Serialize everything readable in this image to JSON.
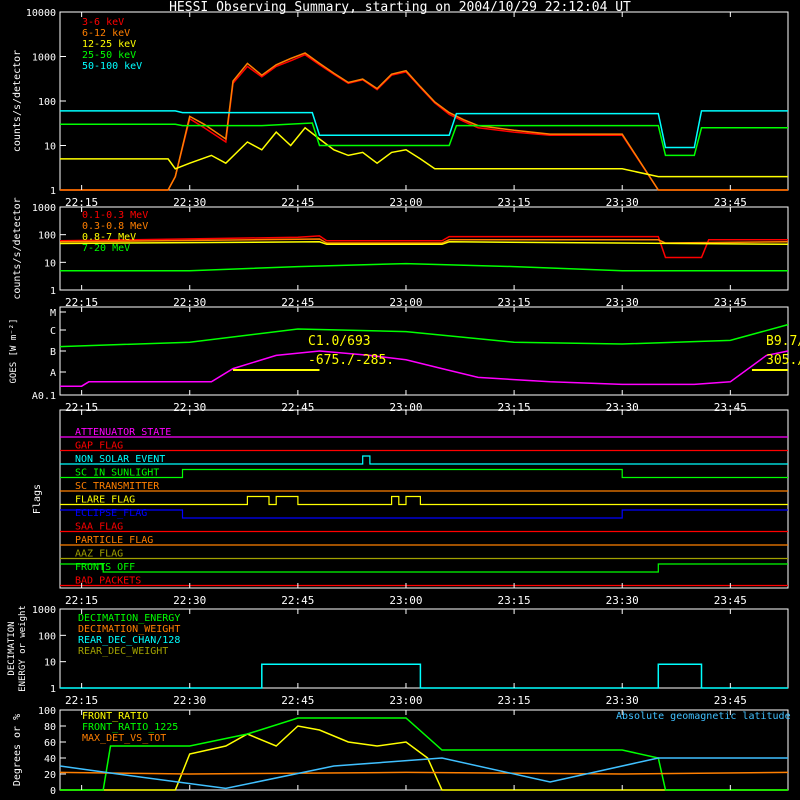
{
  "title": "HESSI Observing Summary, starting on 2004/10/29 22:12:04 UT",
  "time_labels": [
    "22:15",
    "22:30",
    "22:45",
    "23:00",
    "23:15",
    "23:30",
    "23:45"
  ],
  "colors": {
    "red": "#ff0000",
    "orange": "#ff7f00",
    "yellow": "#ffff00",
    "green": "#00ff00",
    "cyan": "#00ffff",
    "magenta": "#ff00ff",
    "blue": "#0000ff",
    "white": "#ffffff",
    "olive": "#a0a000"
  },
  "chart_data": [
    {
      "type": "line",
      "ylabel": "counts/s/detector",
      "scale": "log",
      "ylim": [
        1,
        10000
      ],
      "yticks": [
        "1",
        "10",
        "100",
        "1000",
        "10000"
      ],
      "xlim": [
        "22:12",
        "23:53"
      ],
      "series": [
        {
          "name": "3-6 keV",
          "color": "#ff0000",
          "x": [
            "22:12",
            "22:22",
            "22:27",
            "22:28",
            "22:30",
            "22:32",
            "22:35",
            "22:36",
            "22:38",
            "22:40",
            "22:42",
            "22:44",
            "22:46",
            "22:48",
            "22:50",
            "22:52",
            "22:54",
            "22:56",
            "22:58",
            "23:00",
            "23:02",
            "23:04",
            "23:06",
            "23:08",
            "23:10",
            "23:15",
            "23:20",
            "23:25",
            "23:30",
            "23:35",
            "23:40",
            "23:45",
            "23:53"
          ],
          "y": [
            1,
            1,
            1,
            2,
            40,
            25,
            12,
            250,
            600,
            350,
            600,
            800,
            1100,
            650,
            400,
            250,
            300,
            180,
            380,
            450,
            200,
            90,
            50,
            35,
            25,
            20,
            17,
            17,
            17,
            1,
            1,
            1,
            1
          ]
        },
        {
          "name": "6-12 keV",
          "color": "#ff7f00",
          "x": [
            "22:12",
            "22:27",
            "22:28",
            "22:30",
            "22:32",
            "22:35",
            "22:36",
            "22:38",
            "22:40",
            "22:42",
            "22:44",
            "22:46",
            "22:48",
            "22:50",
            "22:52",
            "22:54",
            "22:56",
            "22:58",
            "23:00",
            "23:02",
            "23:04",
            "23:06",
            "23:08",
            "23:10",
            "23:15",
            "23:20",
            "23:25",
            "23:30",
            "23:35",
            "23:53"
          ],
          "y": [
            1,
            1,
            2,
            45,
            30,
            14,
            280,
            700,
            380,
            650,
            900,
            1200,
            700,
            420,
            260,
            310,
            190,
            400,
            480,
            210,
            95,
            55,
            38,
            28,
            22,
            18,
            18,
            18,
            1,
            1
          ]
        },
        {
          "name": "12-25 keV",
          "color": "#ffff00",
          "x": [
            "22:12",
            "22:27",
            "22:28",
            "22:30",
            "22:33",
            "22:35",
            "22:38",
            "22:40",
            "22:42",
            "22:44",
            "22:46",
            "22:48",
            "22:50",
            "22:52",
            "22:54",
            "22:56",
            "22:58",
            "23:00",
            "23:02",
            "23:04",
            "23:06",
            "23:10",
            "23:20",
            "23:30",
            "23:35",
            "23:53"
          ],
          "y": [
            5,
            5,
            3,
            4,
            6,
            4,
            12,
            8,
            20,
            10,
            25,
            14,
            8,
            6,
            7,
            4,
            7,
            8,
            5,
            3,
            3,
            3,
            3,
            3,
            2,
            2
          ]
        },
        {
          "name": "25-50 keV",
          "color": "#00ff00",
          "x": [
            "22:12",
            "22:28",
            "22:29",
            "22:40",
            "22:47",
            "22:48",
            "23:00",
            "23:06",
            "23:07",
            "23:35",
            "23:36",
            "23:40",
            "23:41",
            "23:53"
          ],
          "y": [
            30,
            30,
            28,
            28,
            32,
            10,
            10,
            10,
            28,
            28,
            6,
            6,
            25,
            25
          ]
        },
        {
          "name": "50-100 keV",
          "color": "#00ffff",
          "x": [
            "22:12",
            "22:28",
            "22:29",
            "22:47",
            "22:48",
            "23:06",
            "23:07",
            "23:35",
            "23:36",
            "23:40",
            "23:41",
            "23:53"
          ],
          "y": [
            60,
            60,
            55,
            55,
            17,
            17,
            52,
            52,
            9,
            9,
            60,
            60
          ]
        }
      ]
    },
    {
      "type": "line",
      "ylabel": "counts/s/detector",
      "scale": "log",
      "ylim": [
        1,
        1000
      ],
      "yticks": [
        "1",
        "10",
        "100",
        "1000"
      ],
      "series": [
        {
          "name": "0.1-0.3 MeV",
          "color": "#ff0000",
          "x": [
            "22:12",
            "22:45",
            "22:48",
            "22:49",
            "23:05",
            "23:06",
            "23:35",
            "23:36",
            "23:41",
            "23:42",
            "23:53"
          ],
          "y": [
            60,
            80,
            90,
            60,
            60,
            85,
            85,
            15,
            15,
            65,
            65
          ]
        },
        {
          "name": "0.3-0.8 MeV",
          "color": "#ff7f00",
          "x": [
            "22:12",
            "22:48",
            "22:49",
            "23:05",
            "23:06",
            "23:35",
            "23:36",
            "23:53"
          ],
          "y": [
            55,
            70,
            50,
            50,
            65,
            65,
            50,
            55
          ]
        },
        {
          "name": "0.8-7 MeV",
          "color": "#ffff00",
          "x": [
            "22:12",
            "22:48",
            "22:49",
            "23:05",
            "23:06",
            "23:53"
          ],
          "y": [
            48,
            55,
            45,
            45,
            55,
            45
          ]
        },
        {
          "name": "7-20 MeV",
          "color": "#00ff00",
          "x": [
            "22:12",
            "22:30",
            "22:45",
            "23:00",
            "23:15",
            "23:30",
            "23:40",
            "23:53"
          ],
          "y": [
            5,
            5,
            7,
            9,
            7,
            5,
            5,
            5
          ]
        }
      ]
    },
    {
      "type": "line",
      "ylabel": "GOES [W m⁻²]",
      "scale": "log",
      "yticks": [
        "A0.1",
        "A",
        "B",
        "C",
        "M"
      ],
      "annotations": [
        "C1.0/693",
        "-675./-285.",
        "B9.7/",
        "305./"
      ],
      "series": [
        {
          "name": "GOES long",
          "color": "#00ff00",
          "x": [
            "22:12",
            "22:30",
            "22:45",
            "23:00",
            "23:15",
            "23:30",
            "23:45",
            "23:53"
          ],
          "y": [
            0.55,
            0.6,
            0.75,
            0.72,
            0.6,
            0.58,
            0.62,
            0.8
          ]
        },
        {
          "name": "GOES short",
          "color": "#ff00ff",
          "x": [
            "22:12",
            "22:15",
            "22:16",
            "22:30",
            "22:33",
            "22:36",
            "22:42",
            "22:48",
            "22:55",
            "23:00",
            "23:05",
            "23:10",
            "23:20",
            "23:30",
            "23:40",
            "23:45",
            "23:50",
            "23:53"
          ],
          "y": [
            0.1,
            0.1,
            0.15,
            0.15,
            0.15,
            0.3,
            0.45,
            0.5,
            0.45,
            0.4,
            0.3,
            0.2,
            0.15,
            0.12,
            0.12,
            0.15,
            0.45,
            0.5
          ]
        }
      ]
    },
    {
      "type": "line",
      "ylabel": "Flags",
      "flags": [
        {
          "name": "ATTENUATOR_STATE",
          "color": "#ff00ff"
        },
        {
          "name": "GAP_FLAG",
          "color": "#ff0000"
        },
        {
          "name": "NON_SOLAR_EVENT",
          "color": "#00ffff"
        },
        {
          "name": "SC_IN_SUNLIGHT",
          "color": "#00ff00"
        },
        {
          "name": "SC_TRANSMITTER",
          "color": "#ff7f00"
        },
        {
          "name": "FLARE_FLAG",
          "color": "#ffff00"
        },
        {
          "name": "ECLIPSE_FLAG",
          "color": "#0000ff"
        },
        {
          "name": "SAA_FLAG",
          "color": "#ff0000"
        },
        {
          "name": "PARTICLE_FLAG",
          "color": "#ff7f00"
        },
        {
          "name": "AAZ_FLAG",
          "color": "#a0a000"
        },
        {
          "name": "FRONTS_OFF",
          "color": "#00ff00"
        },
        {
          "name": "BAD_PACKETS",
          "color": "#ff0000"
        }
      ]
    },
    {
      "type": "line",
      "ylabel": "DECIMATION ENERGY or weight",
      "scale": "log",
      "ylim": [
        1,
        1000
      ],
      "yticks": [
        "1",
        "10",
        "100",
        "1000"
      ],
      "series": [
        {
          "name": "DECIMATION_ENERGY",
          "color": "#00ff00"
        },
        {
          "name": "DECIMATION_WEIGHT",
          "color": "#ff7f00"
        },
        {
          "name": "REAR_DEC_CHAN/128",
          "color": "#00ffff",
          "x": [
            "22:12",
            "22:40",
            "22:40",
            "23:02",
            "23:02",
            "23:35",
            "23:35",
            "23:41",
            "23:41",
            "23:53"
          ],
          "y": [
            1,
            1,
            8,
            8,
            1,
            1,
            8,
            8,
            1,
            1
          ]
        },
        {
          "name": "REAR_DEC_WEIGHT",
          "color": "#a0a000"
        }
      ]
    },
    {
      "type": "line",
      "ylabel": "Degrees or %",
      "ylim": [
        0,
        100
      ],
      "yticks": [
        "0",
        "20",
        "40",
        "60",
        "80",
        "100"
      ],
      "annotations": [
        "Absolute geomagnetic latitude"
      ],
      "series": [
        {
          "name": "FRONT_RATIO",
          "color": "#ffff00",
          "x": [
            "22:12",
            "22:28",
            "22:30",
            "22:35",
            "22:38",
            "22:42",
            "22:45",
            "22:48",
            "22:52",
            "22:56",
            "23:00",
            "23:03",
            "23:05",
            "23:53"
          ],
          "y": [
            0,
            0,
            45,
            55,
            70,
            55,
            80,
            75,
            60,
            55,
            60,
            40,
            0,
            0
          ]
        },
        {
          "name": "FRONT_RATIO_1225",
          "color": "#00ff00",
          "x": [
            "22:12",
            "22:18",
            "22:19",
            "22:30",
            "22:38",
            "22:45",
            "22:50",
            "23:00",
            "23:05",
            "23:10",
            "23:30",
            "23:35",
            "23:36",
            "23:53"
          ],
          "y": [
            0,
            0,
            55,
            55,
            70,
            90,
            90,
            90,
            50,
            50,
            50,
            40,
            0,
            0
          ]
        },
        {
          "name": "MAX_DET_VS_TOT",
          "color": "#ff7f00",
          "x": [
            "22:12",
            "22:30",
            "23:00",
            "23:30",
            "23:53"
          ],
          "y": [
            22,
            20,
            22,
            20,
            22
          ]
        },
        {
          "name": "Absolute geomagnetic latitude",
          "color": "#40c0ff",
          "x": [
            "22:12",
            "22:20",
            "22:35",
            "22:50",
            "23:05",
            "23:20",
            "23:35",
            "23:53"
          ],
          "y": [
            30,
            20,
            2,
            30,
            40,
            10,
            40,
            40
          ]
        }
      ]
    }
  ]
}
